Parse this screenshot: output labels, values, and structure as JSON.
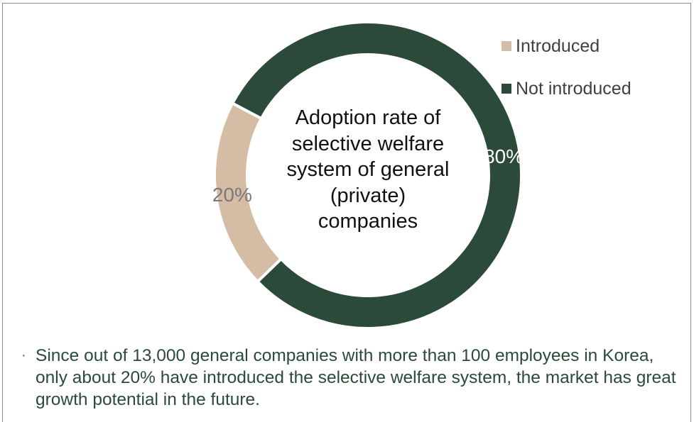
{
  "chart_data": {
    "type": "pie",
    "donut": true,
    "title": "Adoption rate of selective welfare system of general (private) companies",
    "title_lines": [
      "Adoption rate of",
      "selective welfare",
      "system of general",
      "(private)",
      "companies"
    ],
    "series": [
      {
        "name": "Introduced",
        "value": 20,
        "label": "20%",
        "color": "#d4bca5",
        "label_color": "#7a7a7a"
      },
      {
        "name": "Not introduced",
        "value": 80,
        "label": "80%",
        "color": "#2b4a3a",
        "label_color": "#ffffff"
      }
    ],
    "legend_position": "top-right"
  },
  "note": {
    "bullet": "·",
    "text": "Since out of 13,000 general companies with more than 100 employees in Korea, only about 20% have introduced the selective welfare system, the market has great growth potential in the future."
  }
}
